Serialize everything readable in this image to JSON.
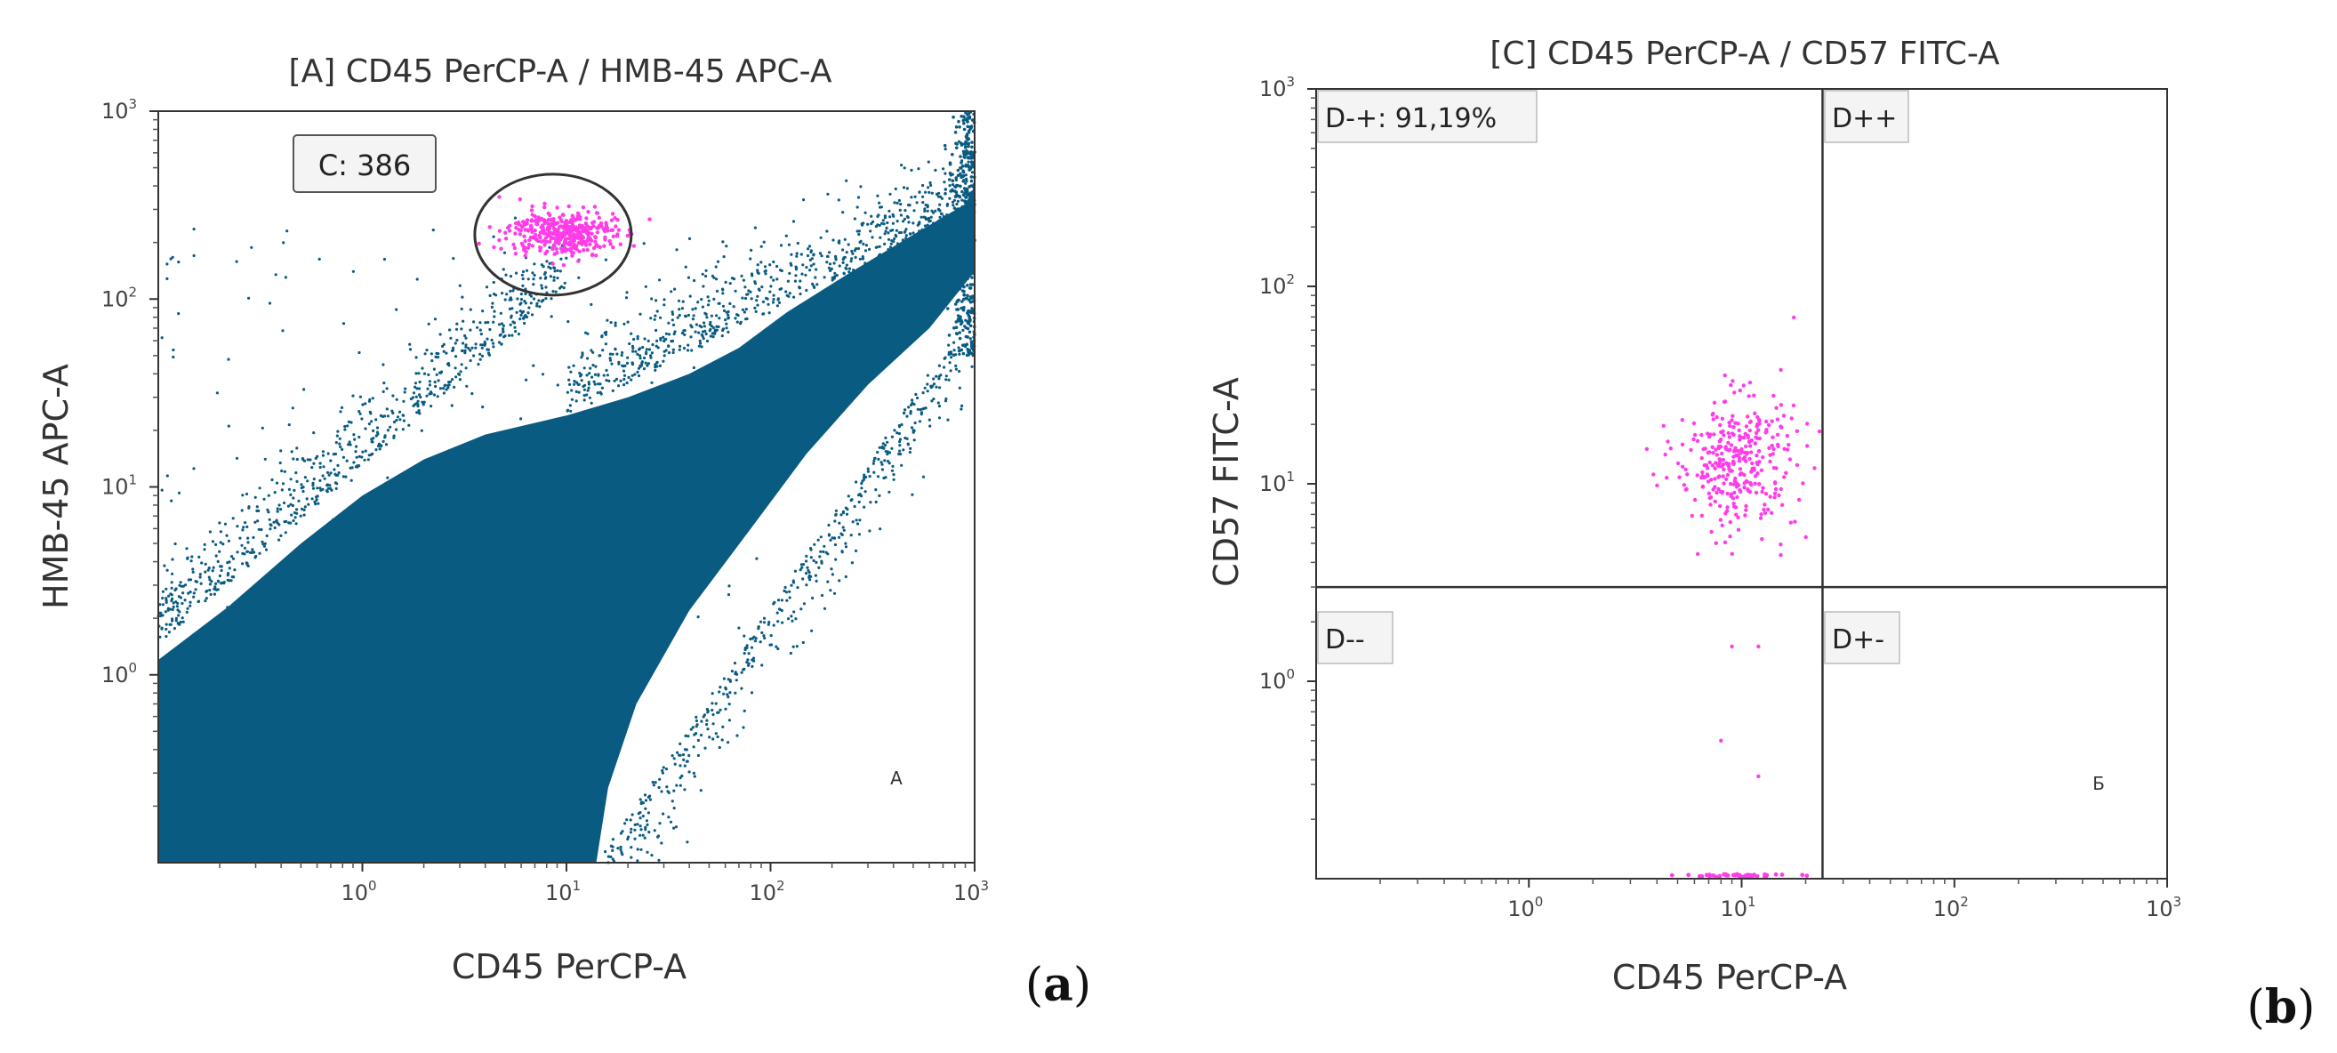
{
  "figure": {
    "panel_a_label": {
      "open": "(",
      "letter": "a",
      "close": ")"
    },
    "panel_b_label": {
      "open": "(",
      "letter": "b",
      "close": ")"
    }
  },
  "colors": {
    "main_population": "#0a5b82",
    "gated_events": "#ff3de8",
    "frame": "#333333",
    "gate": "#333333"
  },
  "chart_data": [
    {
      "type": "scatter",
      "title": "[A] CD45 PerCP-A / HMB-45 APC-A",
      "xlabel": "CD45 PerCP-A",
      "ylabel": "HMB-45 APC-A",
      "xscale": "log",
      "yscale": "log",
      "xlim": [
        0.1,
        1000
      ],
      "ylim": [
        0.1,
        1000
      ],
      "x_ticks": [
        {
          "value": 1,
          "base": "10",
          "exp": "0"
        },
        {
          "value": 10,
          "base": "10",
          "exp": "1"
        },
        {
          "value": 100,
          "base": "10",
          "exp": "2"
        },
        {
          "value": 1000,
          "base": "10",
          "exp": "3"
        }
      ],
      "y_ticks": [
        {
          "value": 1,
          "base": "10",
          "exp": "0"
        },
        {
          "value": 10,
          "base": "10",
          "exp": "1"
        },
        {
          "value": 100,
          "base": "10",
          "exp": "2"
        },
        {
          "value": 1000,
          "base": "10",
          "exp": "3"
        }
      ],
      "gate": {
        "name": "C",
        "count_label": "C: 386",
        "count": 386,
        "center": [
          9.5,
          225
        ],
        "color": "#ff3de8"
      },
      "main_population": {
        "description": "dense CD45 vs HMB-45 event cloud",
        "color": "#0a5b82"
      },
      "panel_letter": "A"
    },
    {
      "type": "scatter",
      "title": "[C] CD45 PerCP-A / CD57 FITC-A",
      "xlabel": "CD45 PerCP-A",
      "ylabel": "CD57 FITC-A",
      "xscale": "log",
      "yscale": "log",
      "xlim": [
        0.1,
        1000
      ],
      "ylim": [
        0.1,
        1000
      ],
      "x_ticks": [
        {
          "value": 1,
          "base": "10",
          "exp": "0"
        },
        {
          "value": 10,
          "base": "10",
          "exp": "1"
        },
        {
          "value": 100,
          "base": "10",
          "exp": "2"
        },
        {
          "value": 1000,
          "base": "10",
          "exp": "3"
        }
      ],
      "y_ticks": [
        {
          "value": 1,
          "base": "10",
          "exp": "0"
        },
        {
          "value": 10,
          "base": "10",
          "exp": "1"
        },
        {
          "value": 100,
          "base": "10",
          "exp": "2"
        },
        {
          "value": 1000,
          "base": "10",
          "exp": "3"
        }
      ],
      "quadrant_x_threshold": 24,
      "quadrant_y_threshold": 3,
      "quadrants": [
        {
          "name": "D-+",
          "label": "D-+: 91,19%",
          "percent": 91.19,
          "position": "top-left"
        },
        {
          "name": "D++",
          "label": "D++",
          "position": "top-right"
        },
        {
          "name": "D--",
          "label": "D--",
          "position": "bottom-left"
        },
        {
          "name": "D+-",
          "label": "D+-",
          "position": "bottom-right"
        }
      ],
      "events": {
        "center": [
          9.5,
          13
        ],
        "color": "#ff3de8"
      },
      "panel_letter": "Б"
    }
  ]
}
